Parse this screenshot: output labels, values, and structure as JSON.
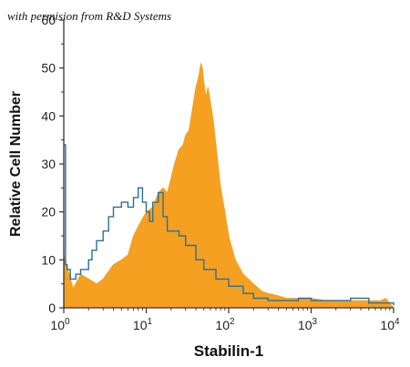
{
  "watermark": "with permision from R&D Systems",
  "chart_data": {
    "type": "area",
    "xlabel": "Stabilin-1",
    "ylabel": "Relative Cell Number",
    "x_scale": "log",
    "xlim": [
      1,
      10000
    ],
    "ylim": [
      0,
      60
    ],
    "x_ticks": [
      {
        "value": 1,
        "base": "10",
        "exp": "0"
      },
      {
        "value": 10,
        "base": "10",
        "exp": "1"
      },
      {
        "value": 100,
        "base": "10",
        "exp": "2"
      },
      {
        "value": 1000,
        "base": "10",
        "exp": "3"
      },
      {
        "value": 10000,
        "base": "10",
        "exp": "4"
      }
    ],
    "y_ticks": [
      "0",
      "10",
      "20",
      "30",
      "40",
      "50",
      "60"
    ],
    "grid": false,
    "legend": "none",
    "series": [
      {
        "color": "#f5a020",
        "style": "filled",
        "x": [
          1,
          1.3,
          1.6,
          2,
          2.5,
          3,
          4,
          5,
          6,
          7,
          8,
          10,
          12,
          14,
          16,
          18,
          20,
          22,
          25,
          28,
          30,
          33,
          36,
          40,
          43,
          46,
          48,
          50,
          53,
          56,
          60,
          65,
          70,
          80,
          90,
          100,
          120,
          150,
          200,
          250,
          300,
          400,
          500,
          700,
          1000,
          1500,
          2000,
          3000,
          5000,
          7000,
          8000,
          10000
        ],
        "values": [
          11,
          4,
          7,
          6,
          5,
          6,
          9,
          10,
          11,
          15,
          17,
          20,
          21,
          24,
          25,
          24,
          27,
          30,
          33,
          34,
          36,
          37,
          41,
          46,
          48,
          51,
          50,
          47,
          44,
          46,
          43,
          39,
          34,
          25,
          20,
          15,
          10,
          7,
          5,
          3.5,
          3,
          2.5,
          2,
          2,
          2,
          1.5,
          1.5,
          1.5,
          1.5,
          1.5,
          2,
          0
        ]
      },
      {
        "color": "#2e6e99",
        "style": "step-line",
        "x": [
          1,
          1.05,
          1.1,
          1.2,
          1.4,
          1.6,
          2,
          2.2,
          2.5,
          3,
          3.5,
          4,
          5,
          6,
          7,
          8,
          9,
          10,
          11,
          12,
          14,
          16,
          18,
          20,
          25,
          30,
          40,
          50,
          70,
          100,
          150,
          200,
          250,
          300,
          400,
          500,
          700,
          1000,
          1500,
          2000,
          3000,
          5000,
          7000,
          10000
        ],
        "values": [
          34,
          9,
          8,
          6,
          7,
          8,
          10,
          12,
          14,
          16,
          19,
          21,
          22,
          21,
          23,
          25,
          22,
          20,
          18,
          22,
          24,
          19,
          16,
          16,
          15,
          13,
          10,
          8,
          6,
          4.5,
          3,
          2,
          2,
          1.5,
          1.5,
          1.5,
          2,
          1.5,
          1.5,
          1.5,
          2,
          1,
          1,
          0.5
        ]
      }
    ]
  }
}
